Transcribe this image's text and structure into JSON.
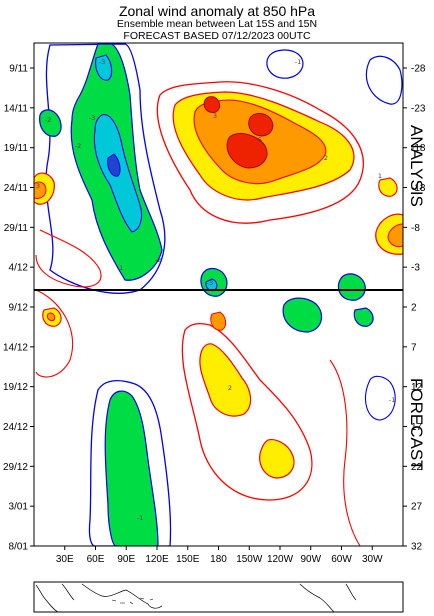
{
  "header": {
    "title": "Zonal wind anomaly at 850 hPa",
    "subtitle": "Ensemble mean between  Lat 15S and 15N",
    "forecast_line": "FORECAST  BASED 07/12/2023 00UTC"
  },
  "chart_data": {
    "type": "heatmap",
    "kind": "Hovmoller diagram (longitude vs time)",
    "title": "Zonal wind anomaly at 850 hPa",
    "x_ticks": [
      "30E",
      "60E",
      "90E",
      "120E",
      "150E",
      "180",
      "150W",
      "120W",
      "90W",
      "60W",
      "30W"
    ],
    "y_ticks_left": [
      "9/11",
      "14/11",
      "19/11",
      "24/11",
      "29/11",
      "4/12",
      "9/12",
      "14/12",
      "19/12",
      "24/12",
      "29/12",
      "3/01",
      "8/01"
    ],
    "y_ticks_right": [
      "-28",
      "-23",
      "-18",
      "-13",
      "-8",
      "-3",
      "2",
      "7",
      "12",
      "17",
      "22",
      "27",
      "32"
    ],
    "section_labels": {
      "upper": "ANALYSIS",
      "lower": "FORECAST"
    },
    "divider_at": "between 4/12 and 9/12",
    "contour_labels": [
      "-3",
      "-2",
      "-1",
      "1",
      "2",
      "3",
      "-5",
      "5"
    ],
    "colors": {
      "positive_weak": "#ffee00",
      "positive_moderate": "#ff9900",
      "positive_strong": "#ee2200",
      "negative_weak": "#00dd44",
      "negative_moderate": "#00c8d8",
      "negative_strong": "#2244cc",
      "contour_positive": "#ff0000",
      "contour_negative": "#0000ee"
    },
    "features": [
      {
        "sign": "negative",
        "region": "60E-110E",
        "period": "9/11-4/12",
        "peak": "-5"
      },
      {
        "sign": "positive",
        "region": "180-120W",
        "period": "12/11-24/11",
        "peak": "5"
      },
      {
        "sign": "positive",
        "region": "15E-20E",
        "period": "22/11-28/11",
        "peak": "3"
      },
      {
        "sign": "positive",
        "region": "10W-0",
        "period": "26/11-4/12",
        "peak": "3"
      },
      {
        "sign": "negative",
        "region": "150W-110W",
        "period": "7/12-13/12",
        "peak": "-2"
      },
      {
        "sign": "negative",
        "region": "90E-110E",
        "period": "20/12-8/01",
        "peak": "-2"
      },
      {
        "sign": "positive",
        "region": "180-150W",
        "period": "15/12-24/12",
        "peak": "2"
      },
      {
        "sign": "positive",
        "region": "150W-130W",
        "period": "26/12-3/01",
        "peak": "1"
      }
    ]
  },
  "map": {
    "label": "longitude reference map"
  }
}
